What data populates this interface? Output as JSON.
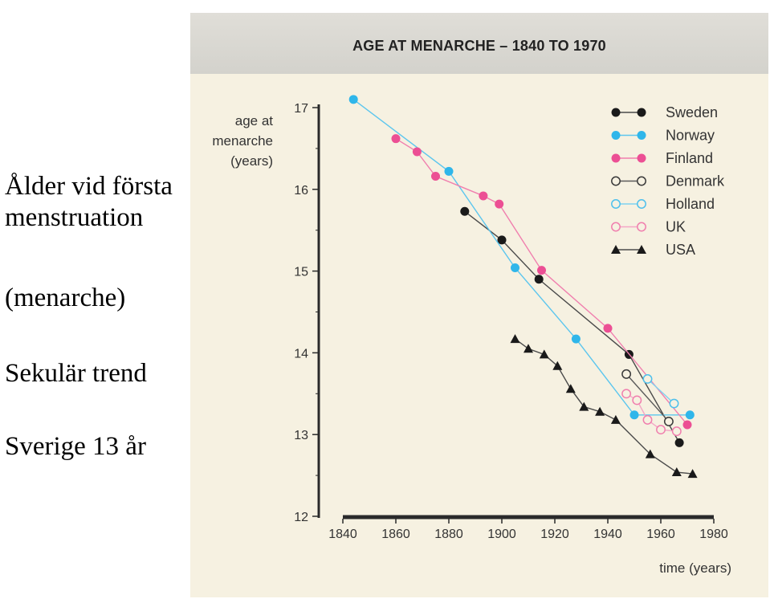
{
  "slide": {
    "lines": [
      "Ålder vid första",
      "menstruation",
      "(menarche)",
      "Sekulär trend",
      "Sverige 13 år"
    ]
  },
  "chart_data": {
    "type": "line",
    "title": "AGE AT MENARCHE – 1840 TO 1970",
    "ylabel_lines": [
      "age at",
      "menarche",
      "(years)"
    ],
    "xlabel": "time (years)",
    "xlim": [
      1840,
      1980
    ],
    "ylim": [
      12,
      17
    ],
    "x_ticks": [
      1840,
      1860,
      1880,
      1900,
      1920,
      1940,
      1960,
      1980
    ],
    "y_ticks": [
      12,
      13,
      14,
      15,
      16,
      17
    ],
    "legend_position": "top-right",
    "series": [
      {
        "name": "Sweden",
        "marker": "filled-circle",
        "color": "#1a1a1a",
        "line_color": "#4a4a4a",
        "points": [
          [
            1886,
            15.73
          ],
          [
            1900,
            15.38
          ],
          [
            1914,
            14.9
          ],
          [
            1948,
            13.98
          ],
          [
            1967,
            12.9
          ]
        ]
      },
      {
        "name": "Norway",
        "marker": "filled-circle",
        "color": "#2fb6ea",
        "line_color": "#5cc6ee",
        "points": [
          [
            1844,
            17.1
          ],
          [
            1880,
            16.22
          ],
          [
            1905,
            15.04
          ],
          [
            1928,
            14.17
          ],
          [
            1950,
            13.24
          ],
          [
            1971,
            13.24
          ]
        ]
      },
      {
        "name": "Finland",
        "marker": "filled-circle",
        "color": "#ec4f94",
        "line_color": "#f07fae",
        "points": [
          [
            1860,
            16.62
          ],
          [
            1868,
            16.46
          ],
          [
            1875,
            16.16
          ],
          [
            1893,
            15.92
          ],
          [
            1899,
            15.82
          ],
          [
            1915,
            15.01
          ],
          [
            1940,
            14.3
          ],
          [
            1970,
            13.12
          ]
        ]
      },
      {
        "name": "Denmark",
        "marker": "open-circle",
        "color": "#3a3a3a",
        "line_color": "#5a5a5a",
        "points": [
          [
            1947,
            13.74
          ],
          [
            1963,
            13.16
          ]
        ]
      },
      {
        "name": "Holland",
        "marker": "open-circle",
        "color": "#4fc0ec",
        "line_color": "#7fd2f0",
        "points": [
          [
            1955,
            13.68
          ],
          [
            1965,
            13.38
          ]
        ]
      },
      {
        "name": "UK",
        "marker": "open-circle",
        "color": "#f07fae",
        "line_color": "#f4a6c6",
        "points": [
          [
            1947,
            13.5
          ],
          [
            1951,
            13.42
          ],
          [
            1955,
            13.18
          ],
          [
            1960,
            13.06
          ],
          [
            1966,
            13.04
          ]
        ]
      },
      {
        "name": "USA",
        "marker": "filled-triangle",
        "color": "#1a1a1a",
        "line_color": "#4a4a4a",
        "points": [
          [
            1905,
            14.17
          ],
          [
            1910,
            14.05
          ],
          [
            1916,
            13.98
          ],
          [
            1921,
            13.84
          ],
          [
            1926,
            13.56
          ],
          [
            1931,
            13.34
          ],
          [
            1937,
            13.28
          ],
          [
            1943,
            13.18
          ],
          [
            1956,
            12.76
          ],
          [
            1966,
            12.54
          ],
          [
            1972,
            12.52
          ]
        ]
      }
    ]
  }
}
